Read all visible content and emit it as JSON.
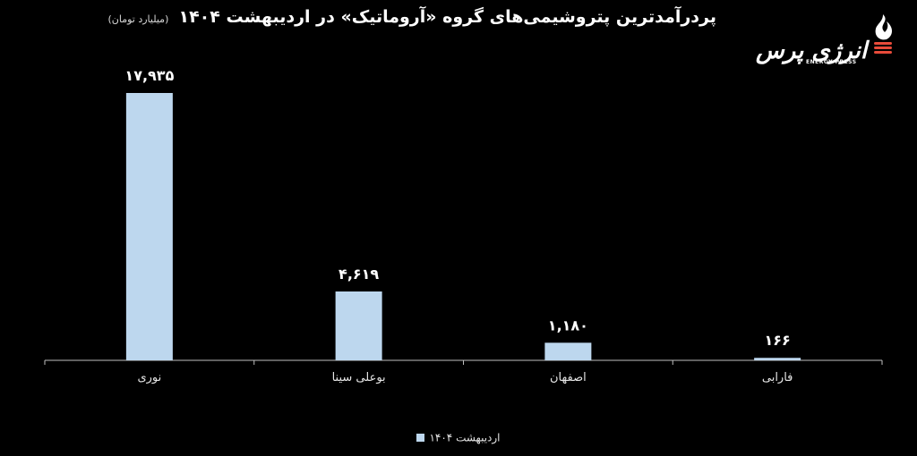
{
  "chart_data": {
    "type": "bar",
    "title": "پردرآمدترین پتروشیمی‌های گروه «آروماتیک» در اردیبهشت ۱۴۰۴",
    "subtitle": "(میلیارد تومان)",
    "categories": [
      "نوری",
      "بوعلی سینا",
      "اصفهان",
      "فارابی"
    ],
    "series": [
      {
        "name": "اردیبهشت ۱۴۰۴",
        "values": [
          17935,
          4619,
          1180,
          166
        ],
        "labels": [
          "۱۷,۹۳۵",
          "۴,۶۱۹",
          "۱,۱۸۰",
          "۱۶۶"
        ]
      }
    ],
    "ylim": [
      0,
      17935
    ],
    "grid": false,
    "legend_position": "bottom",
    "bar_color": "#bdd7ee"
  },
  "logo": {
    "text": "انرژی پرس",
    "subtext": "ENERGY PRESS"
  }
}
